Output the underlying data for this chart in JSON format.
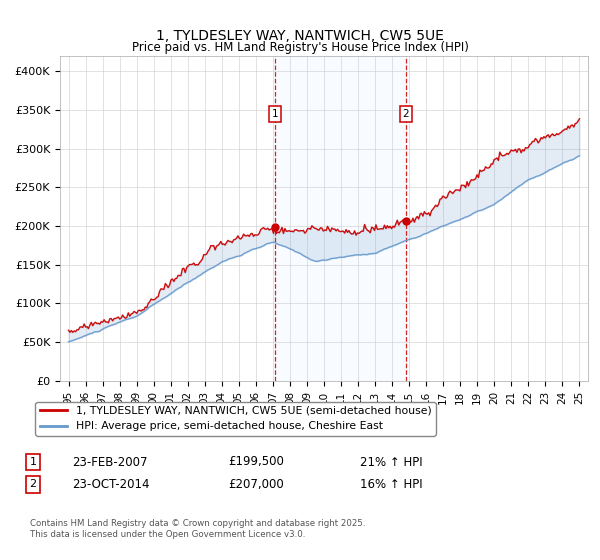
{
  "title": "1, TYLDESLEY WAY, NANTWICH, CW5 5UE",
  "subtitle": "Price paid vs. HM Land Registry's House Price Index (HPI)",
  "legend_line1": "1, TYLDESLEY WAY, NANTWICH, CW5 5UE (semi-detached house)",
  "legend_line2": "HPI: Average price, semi-detached house, Cheshire East",
  "footnote": "Contains HM Land Registry data © Crown copyright and database right 2025.\nThis data is licensed under the Open Government Licence v3.0.",
  "sale1": {
    "date": "23-FEB-2007",
    "price": 199500,
    "hpi_change": "21% ↑ HPI",
    "label": "1"
  },
  "sale2": {
    "date": "23-OCT-2014",
    "price": 207000,
    "hpi_change": "16% ↑ HPI",
    "label": "2"
  },
  "sale1_x": 2007.14,
  "sale2_x": 2014.81,
  "red_color": "#cc0000",
  "blue_color": "#6699cc",
  "span_color": "#ddeeff",
  "ylim": [
    0,
    420000
  ],
  "xlim": [
    1994.5,
    2025.5
  ],
  "yticks": [
    0,
    50000,
    100000,
    150000,
    200000,
    250000,
    300000,
    350000,
    400000
  ],
  "ytick_labels": [
    "£0",
    "£50K",
    "£100K",
    "£150K",
    "£200K",
    "£250K",
    "£300K",
    "£350K",
    "£400K"
  ],
  "xticks": [
    1995,
    1996,
    1997,
    1998,
    1999,
    2000,
    2001,
    2002,
    2003,
    2004,
    2005,
    2006,
    2007,
    2008,
    2009,
    2010,
    2011,
    2012,
    2013,
    2014,
    2015,
    2016,
    2017,
    2018,
    2019,
    2020,
    2021,
    2022,
    2023,
    2024,
    2025
  ],
  "xtick_labels": [
    "95",
    "96",
    "97",
    "98",
    "99",
    "00",
    "01",
    "02",
    "03",
    "04",
    "05",
    "06",
    "07",
    "08",
    "09",
    "10",
    "11",
    "12",
    "13",
    "14",
    "15",
    "16",
    "17",
    "18",
    "19",
    "20",
    "21",
    "22",
    "23",
    "24",
    "25"
  ]
}
